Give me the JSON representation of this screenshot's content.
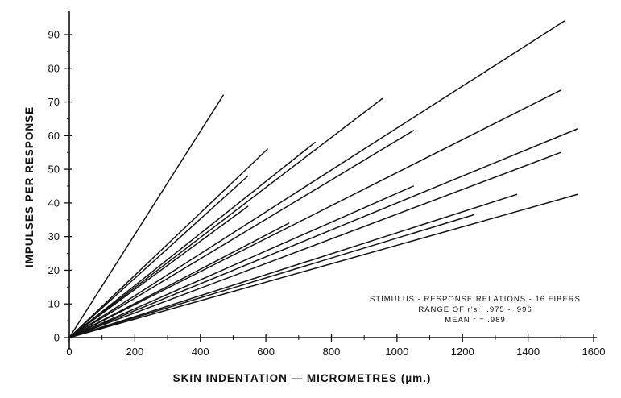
{
  "chart_data": {
    "type": "line",
    "xlabel": "SKIN INDENTATION — MICROMETRES (µm.)",
    "ylabel": "IMPULSES PER RESPONSE",
    "xlim": [
      0,
      1600
    ],
    "ylim": [
      0,
      95
    ],
    "x_ticks": [
      0,
      200,
      400,
      600,
      800,
      1000,
      1200,
      1400,
      1600
    ],
    "y_ticks": [
      0,
      10,
      20,
      30,
      40,
      50,
      60,
      70,
      80,
      90
    ],
    "grid": false,
    "annotations": [
      "STIMULUS - RESPONSE RELATIONS - 16 FIBERS",
      "RANGE OF r's : .975 - .996",
      "MEAN r = .989"
    ],
    "series": [
      {
        "points": [
          [
            0,
            0
          ],
          [
            470,
            72
          ]
        ]
      },
      {
        "points": [
          [
            0,
            0
          ],
          [
            605,
            56
          ]
        ]
      },
      {
        "points": [
          [
            0,
            0
          ],
          [
            545,
            48
          ]
        ]
      },
      {
        "points": [
          [
            0,
            0
          ],
          [
            545,
            39
          ]
        ]
      },
      {
        "points": [
          [
            0,
            0
          ],
          [
            750,
            58
          ]
        ]
      },
      {
        "points": [
          [
            0,
            0
          ],
          [
            955,
            71
          ]
        ]
      },
      {
        "points": [
          [
            0,
            0
          ],
          [
            670,
            34
          ]
        ]
      },
      {
        "points": [
          [
            0,
            0
          ],
          [
            1510,
            94
          ]
        ]
      },
      {
        "points": [
          [
            0,
            0
          ],
          [
            1050,
            61.5
          ]
        ]
      },
      {
        "points": [
          [
            0,
            0
          ],
          [
            1500,
            73.5
          ]
        ]
      },
      {
        "points": [
          [
            0,
            0
          ],
          [
            1050,
            45
          ]
        ]
      },
      {
        "points": [
          [
            0,
            0
          ],
          [
            1550,
            62
          ]
        ]
      },
      {
        "points": [
          [
            0,
            0
          ],
          [
            1500,
            55
          ]
        ]
      },
      {
        "points": [
          [
            0,
            0
          ],
          [
            1365,
            42.5
          ]
        ]
      },
      {
        "points": [
          [
            0,
            0
          ],
          [
            1235,
            36.5
          ]
        ]
      },
      {
        "points": [
          [
            0,
            0
          ],
          [
            1550,
            42.5
          ]
        ]
      }
    ]
  }
}
